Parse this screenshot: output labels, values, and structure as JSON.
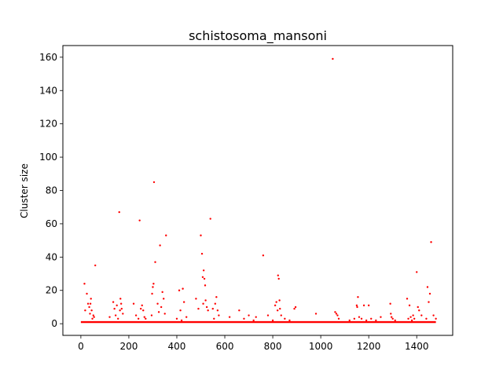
{
  "chart_data": {
    "type": "scatter",
    "title": "schistosoma_mansoni",
    "xlabel": "",
    "ylabel": "Cluster size",
    "xlim": [
      -75,
      1550
    ],
    "ylim": [
      -7,
      167
    ],
    "xticks": [
      0,
      200,
      400,
      600,
      800,
      1000,
      1200,
      1400
    ],
    "yticks": [
      0,
      20,
      40,
      60,
      80,
      100,
      120,
      140,
      160
    ],
    "grid": false,
    "legend": "none",
    "marker_color": "#ff0000",
    "baseline": {
      "value": 1,
      "x_range": [
        0,
        1480
      ]
    },
    "series": [
      {
        "x": [
          15,
          18,
          25,
          30,
          35,
          38,
          40,
          42,
          45,
          48,
          52,
          55,
          60,
          120,
          135,
          140,
          145,
          150,
          155,
          160,
          163,
          165,
          168,
          170,
          175,
          220,
          230,
          240,
          245,
          250,
          255,
          260,
          265,
          270,
          295,
          297,
          300,
          303,
          305,
          310,
          320,
          325,
          330,
          335,
          340,
          345,
          350,
          355,
          400,
          410,
          415,
          420,
          425,
          430,
          440,
          480,
          490,
          500,
          505,
          508,
          510,
          512,
          515,
          518,
          520,
          525,
          530,
          540,
          550,
          555,
          560,
          565,
          570,
          575,
          620,
          660,
          680,
          700,
          720,
          730,
          760,
          780,
          800,
          810,
          815,
          820,
          822,
          825,
          828,
          830,
          835,
          850,
          870,
          890,
          895,
          980,
          1050,
          1060,
          1065,
          1070,
          1075,
          1120,
          1140,
          1150,
          1152,
          1155,
          1160,
          1170,
          1180,
          1190,
          1200,
          1210,
          1230,
          1250,
          1290,
          1292,
          1295,
          1300,
          1310,
          1360,
          1365,
          1370,
          1375,
          1380,
          1385,
          1390,
          1400,
          1405,
          1410,
          1420,
          1440,
          1445,
          1450,
          1455,
          1460,
          1470,
          1480
        ],
        "y": [
          24,
          8,
          18,
          12,
          10,
          6,
          12,
          15,
          8,
          3,
          5,
          4,
          35,
          4,
          13,
          9,
          5,
          11,
          3,
          67,
          8,
          15,
          12,
          9,
          6,
          12,
          5,
          3,
          62,
          9,
          11,
          8,
          4,
          3,
          5,
          18,
          22,
          24,
          85,
          37,
          12,
          7,
          47,
          10,
          19,
          15,
          6,
          53,
          3,
          20,
          8,
          2,
          21,
          13,
          4,
          15,
          9,
          53,
          42,
          28,
          12,
          32,
          27,
          23,
          14,
          10,
          8,
          63,
          9,
          3,
          12,
          16,
          8,
          5,
          4,
          8,
          3,
          5,
          2,
          4,
          41,
          5,
          2,
          11,
          13,
          8,
          29,
          27,
          14,
          9,
          5,
          3,
          2,
          9,
          10,
          6,
          159,
          7,
          6,
          5,
          3,
          2,
          3,
          11,
          10,
          16,
          4,
          3,
          11,
          2,
          11,
          3,
          2,
          4,
          12,
          6,
          4,
          3,
          2,
          15,
          3,
          11,
          4,
          2,
          5,
          3,
          31,
          10,
          8,
          5,
          3,
          22,
          13,
          18,
          49,
          5,
          3
        ]
      }
    ]
  }
}
